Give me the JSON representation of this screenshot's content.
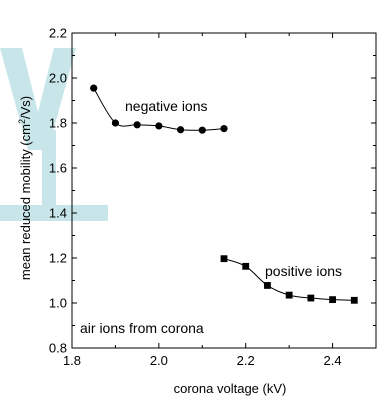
{
  "colors": {
    "watermark": "#c8e6ea",
    "ink": "#000000"
  },
  "chart_data": {
    "type": "scatter",
    "xlabel": "corona voltage  (kV)",
    "ylabel_parts": {
      "before": "mean reduced mobility  (cm",
      "sup": "2",
      "after": "/Vs)"
    },
    "xlim": [
      1.8,
      2.5
    ],
    "ylim": [
      0.8,
      2.2
    ],
    "xticks": [
      "1.8",
      "2.0",
      "2.2",
      "2.4"
    ],
    "yticks": [
      "0.8",
      "1.0",
      "1.2",
      "1.4",
      "1.6",
      "1.8",
      "2.0",
      "2.2"
    ],
    "grid": false,
    "series": [
      {
        "name": "negative ions",
        "marker": "circle",
        "x": [
          1.85,
          1.9,
          1.95,
          2.0,
          2.05,
          2.1,
          2.15
        ],
        "y": [
          1.955,
          1.8,
          1.792,
          1.787,
          1.77,
          1.768,
          1.775
        ]
      },
      {
        "name": "positive ions",
        "marker": "square",
        "x": [
          2.15,
          2.2,
          2.25,
          2.3,
          2.35,
          2.4,
          2.45
        ],
        "y": [
          1.197,
          1.163,
          1.078,
          1.035,
          1.022,
          1.015,
          1.012
        ]
      }
    ],
    "annotation": "air ions from corona"
  }
}
